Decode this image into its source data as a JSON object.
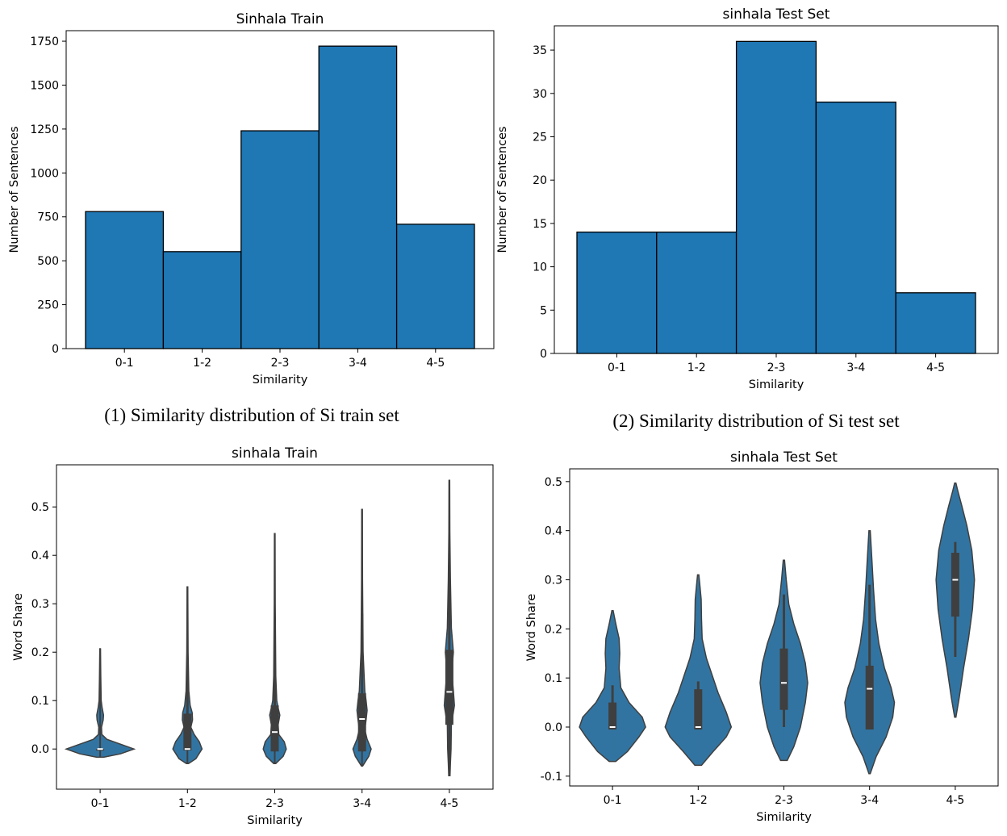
{
  "captions": [
    "(1) Similarity distribution of Si train set",
    "(2) Similarity distribution of Si test set"
  ],
  "chart_data": [
    {
      "type": "bar",
      "title": "Sinhala Train",
      "xlabel": "Similarity",
      "ylabel": "Number of Sentences",
      "categories": [
        "0-1",
        "1-2",
        "2-3",
        "3-4",
        "4-5"
      ],
      "values": [
        780,
        552,
        1240,
        1722,
        708
      ],
      "ylim": [
        0,
        1810
      ],
      "yticks": [
        0,
        250,
        500,
        750,
        1000,
        1250,
        1500,
        1750
      ],
      "grid": false,
      "color": "#1f77b4"
    },
    {
      "type": "bar",
      "title": "sinhala Test Set",
      "xlabel": "Similarity",
      "ylabel": "Number of Sentences",
      "categories": [
        "0-1",
        "1-2",
        "2-3",
        "3-4",
        "4-5"
      ],
      "values": [
        14,
        14,
        36,
        29,
        7
      ],
      "ylim": [
        0,
        37.8
      ],
      "yticks": [
        0,
        5,
        10,
        15,
        20,
        25,
        30,
        35
      ],
      "grid": false,
      "color": "#1f77b4"
    },
    {
      "type": "violin",
      "title": "sinhala Train",
      "xlabel": "Similarity",
      "ylabel": "Word Share",
      "categories": [
        "0-1",
        "1-2",
        "2-3",
        "3-4",
        "4-5"
      ],
      "ylim": [
        -0.083,
        0.587
      ],
      "yticks": [
        0.0,
        0.1,
        0.2,
        0.3,
        0.4,
        0.5
      ],
      "grid": false,
      "color": "#3274a1",
      "series": [
        {
          "min": -0.017,
          "max": 0.207,
          "q1": 0.0,
          "median": 0.0,
          "q3": 0.0,
          "whisker_low": 0.0,
          "whisker_high": 0.0,
          "density": [
            [
              -0.017,
              0.1
            ],
            [
              -0.01,
              0.6
            ],
            [
              0.0,
              1.0
            ],
            [
              0.01,
              0.6
            ],
            [
              0.02,
              0.2
            ],
            [
              0.03,
              0.05
            ],
            [
              0.045,
              0.04
            ],
            [
              0.06,
              0.09
            ],
            [
              0.07,
              0.1
            ],
            [
              0.085,
              0.06
            ],
            [
              0.1,
              0.03
            ],
            [
              0.15,
              0.02
            ],
            [
              0.207,
              0.01
            ]
          ]
        },
        {
          "min": -0.03,
          "max": 0.335,
          "q1": -0.003,
          "median": 0.0,
          "q3": 0.073,
          "whisker_low": -0.003,
          "whisker_high": 0.18,
          "density": [
            [
              -0.03,
              0.03
            ],
            [
              -0.02,
              0.25
            ],
            [
              0.0,
              0.43
            ],
            [
              0.015,
              0.35
            ],
            [
              0.03,
              0.2
            ],
            [
              0.045,
              0.1
            ],
            [
              0.06,
              0.15
            ],
            [
              0.075,
              0.14
            ],
            [
              0.09,
              0.08
            ],
            [
              0.12,
              0.04
            ],
            [
              0.2,
              0.02
            ],
            [
              0.335,
              0.01
            ]
          ]
        },
        {
          "min": -0.03,
          "max": 0.445,
          "q1": -0.005,
          "median": 0.035,
          "q3": 0.09,
          "whisker_low": -0.005,
          "whisker_high": 0.23,
          "density": [
            [
              -0.03,
              0.03
            ],
            [
              -0.015,
              0.25
            ],
            [
              0.0,
              0.34
            ],
            [
              0.015,
              0.28
            ],
            [
              0.03,
              0.12
            ],
            [
              0.05,
              0.1
            ],
            [
              0.07,
              0.15
            ],
            [
              0.085,
              0.1
            ],
            [
              0.1,
              0.06
            ],
            [
              0.15,
              0.03
            ],
            [
              0.3,
              0.015
            ],
            [
              0.445,
              0.01
            ]
          ]
        },
        {
          "min": -0.035,
          "max": 0.495,
          "q1": -0.005,
          "median": 0.062,
          "q3": 0.115,
          "whisker_low": -0.005,
          "whisker_high": 0.28,
          "density": [
            [
              -0.035,
              0.02
            ],
            [
              -0.015,
              0.2
            ],
            [
              0.0,
              0.27
            ],
            [
              0.02,
              0.15
            ],
            [
              0.04,
              0.08
            ],
            [
              0.06,
              0.12
            ],
            [
              0.08,
              0.15
            ],
            [
              0.1,
              0.12
            ],
            [
              0.12,
              0.08
            ],
            [
              0.2,
              0.03
            ],
            [
              0.35,
              0.015
            ],
            [
              0.495,
              0.01
            ]
          ]
        },
        {
          "min": -0.055,
          "max": 0.555,
          "q1": 0.05,
          "median": 0.118,
          "q3": 0.205,
          "whisker_low": -0.02,
          "whisker_high": 0.38,
          "density": [
            [
              -0.055,
              0.02
            ],
            [
              -0.03,
              0.03
            ],
            [
              0.0,
              0.05
            ],
            [
              0.05,
              0.06
            ],
            [
              0.09,
              0.15
            ],
            [
              0.12,
              0.12
            ],
            [
              0.16,
              0.07
            ],
            [
              0.2,
              0.12
            ],
            [
              0.25,
              0.06
            ],
            [
              0.35,
              0.03
            ],
            [
              0.45,
              0.015
            ],
            [
              0.555,
              0.01
            ]
          ]
        }
      ]
    },
    {
      "type": "violin",
      "title": "sinhala Test Set",
      "xlabel": "Similarity",
      "ylabel": "Word Share",
      "categories": [
        "0-1",
        "1-2",
        "2-3",
        "3-4",
        "4-5"
      ],
      "ylim": [
        -0.12,
        0.526
      ],
      "yticks": [
        -0.1,
        0.0,
        0.1,
        0.2,
        0.3,
        0.4,
        0.5
      ],
      "grid": false,
      "color": "#3274a1",
      "series": [
        {
          "min": -0.07,
          "max": 0.237,
          "q1": -0.005,
          "median": 0.0,
          "q3": 0.05,
          "whisker_low": -0.005,
          "whisker_high": 0.085,
          "density": [
            [
              -0.07,
              0.1
            ],
            [
              -0.05,
              0.45
            ],
            [
              -0.02,
              0.8
            ],
            [
              0.0,
              1.0
            ],
            [
              0.02,
              0.9
            ],
            [
              0.05,
              0.5
            ],
            [
              0.08,
              0.25
            ],
            [
              0.12,
              0.2
            ],
            [
              0.15,
              0.22
            ],
            [
              0.18,
              0.2
            ],
            [
              0.21,
              0.1
            ],
            [
              0.237,
              0.02
            ]
          ]
        },
        {
          "min": -0.078,
          "max": 0.31,
          "q1": -0.005,
          "median": 0.0,
          "q3": 0.077,
          "whisker_low": -0.005,
          "whisker_high": 0.093,
          "density": [
            [
              -0.078,
              0.1
            ],
            [
              -0.05,
              0.45
            ],
            [
              -0.02,
              0.85
            ],
            [
              0.0,
              1.0
            ],
            [
              0.03,
              0.85
            ],
            [
              0.07,
              0.6
            ],
            [
              0.1,
              0.45
            ],
            [
              0.14,
              0.25
            ],
            [
              0.18,
              0.12
            ],
            [
              0.22,
              0.1
            ],
            [
              0.26,
              0.09
            ],
            [
              0.29,
              0.05
            ],
            [
              0.31,
              0.02
            ]
          ]
        },
        {
          "min": -0.068,
          "max": 0.34,
          "q1": 0.035,
          "median": 0.09,
          "q3": 0.16,
          "whisker_low": 0.0,
          "whisker_high": 0.27,
          "density": [
            [
              -0.068,
              0.1
            ],
            [
              -0.04,
              0.3
            ],
            [
              0.0,
              0.5
            ],
            [
              0.05,
              0.65
            ],
            [
              0.09,
              0.72
            ],
            [
              0.13,
              0.65
            ],
            [
              0.17,
              0.5
            ],
            [
              0.21,
              0.3
            ],
            [
              0.25,
              0.15
            ],
            [
              0.3,
              0.07
            ],
            [
              0.34,
              0.02
            ]
          ]
        },
        {
          "min": -0.095,
          "max": 0.4,
          "q1": -0.005,
          "median": 0.078,
          "q3": 0.125,
          "whisker_low": -0.005,
          "whisker_high": 0.29,
          "density": [
            [
              -0.095,
              0.02
            ],
            [
              -0.06,
              0.2
            ],
            [
              -0.02,
              0.5
            ],
            [
              0.02,
              0.7
            ],
            [
              0.05,
              0.75
            ],
            [
              0.08,
              0.65
            ],
            [
              0.12,
              0.45
            ],
            [
              0.17,
              0.28
            ],
            [
              0.22,
              0.18
            ],
            [
              0.28,
              0.12
            ],
            [
              0.34,
              0.07
            ],
            [
              0.4,
              0.02
            ]
          ]
        },
        {
          "min": 0.02,
          "max": 0.497,
          "q1": 0.225,
          "median": 0.3,
          "q3": 0.355,
          "whisker_low": 0.143,
          "whisker_high": 0.377,
          "density": [
            [
              0.02,
              0.02
            ],
            [
              0.06,
              0.12
            ],
            [
              0.12,
              0.25
            ],
            [
              0.18,
              0.4
            ],
            [
              0.24,
              0.52
            ],
            [
              0.3,
              0.58
            ],
            [
              0.36,
              0.5
            ],
            [
              0.41,
              0.35
            ],
            [
              0.45,
              0.2
            ],
            [
              0.48,
              0.08
            ],
            [
              0.497,
              0.02
            ]
          ]
        }
      ]
    }
  ]
}
